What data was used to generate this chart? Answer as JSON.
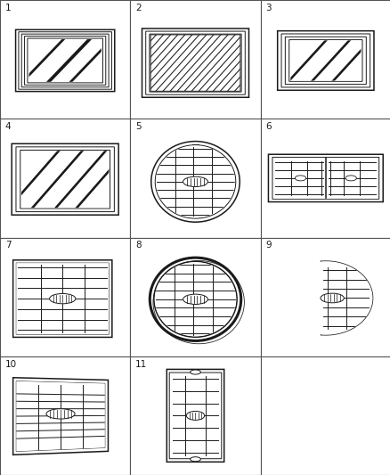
{
  "bg_color": "#ffffff",
  "line_color": "#1a1a1a",
  "grid_line_color": "#444444",
  "lw_thin": 0.7,
  "lw_med": 1.1,
  "lw_thick": 2.2,
  "lw_border": 0.9
}
